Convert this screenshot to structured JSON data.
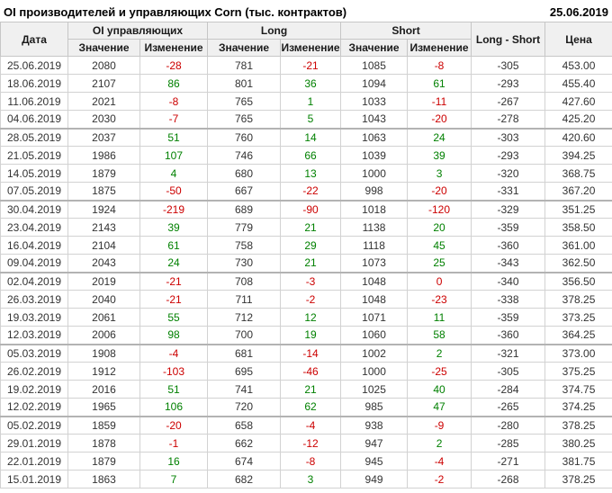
{
  "header": {
    "title": "OI производителей и управляющих Corn (тыс. контрактов)",
    "date": "25.06.2019"
  },
  "table": {
    "columns": {
      "date": "Дата",
      "oi_group": "OI управляющих",
      "long_group": "Long",
      "short_group": "Short",
      "value": "Значение",
      "change": "Изменение",
      "long_short": "Long - Short",
      "price": "Цена"
    },
    "rows": [
      {
        "date": "25.06.2019",
        "oi": "2080",
        "oi_chg": "-28",
        "long": "781",
        "long_chg": "-21",
        "short": "1085",
        "short_chg": "-8",
        "long_short": "-305",
        "price": "453.00"
      },
      {
        "date": "18.06.2019",
        "oi": "2107",
        "oi_chg": "86",
        "long": "801",
        "long_chg": "36",
        "short": "1094",
        "short_chg": "61",
        "long_short": "-293",
        "price": "455.40"
      },
      {
        "date": "11.06.2019",
        "oi": "2021",
        "oi_chg": "-8",
        "long": "765",
        "long_chg": "1",
        "short": "1033",
        "short_chg": "-11",
        "long_short": "-267",
        "price": "427.60"
      },
      {
        "date": "04.06.2019",
        "oi": "2030",
        "oi_chg": "-7",
        "long": "765",
        "long_chg": "5",
        "short": "1043",
        "short_chg": "-20",
        "long_short": "-278",
        "price": "425.20"
      },
      {
        "date": "28.05.2019",
        "oi": "2037",
        "oi_chg": "51",
        "long": "760",
        "long_chg": "14",
        "short": "1063",
        "short_chg": "24",
        "long_short": "-303",
        "price": "420.60"
      },
      {
        "date": "21.05.2019",
        "oi": "1986",
        "oi_chg": "107",
        "long": "746",
        "long_chg": "66",
        "short": "1039",
        "short_chg": "39",
        "long_short": "-293",
        "price": "394.25"
      },
      {
        "date": "14.05.2019",
        "oi": "1879",
        "oi_chg": "4",
        "long": "680",
        "long_chg": "13",
        "short": "1000",
        "short_chg": "3",
        "long_short": "-320",
        "price": "368.75"
      },
      {
        "date": "07.05.2019",
        "oi": "1875",
        "oi_chg": "-50",
        "long": "667",
        "long_chg": "-22",
        "short": "998",
        "short_chg": "-20",
        "long_short": "-331",
        "price": "367.20"
      },
      {
        "date": "30.04.2019",
        "oi": "1924",
        "oi_chg": "-219",
        "long": "689",
        "long_chg": "-90",
        "short": "1018",
        "short_chg": "-120",
        "long_short": "-329",
        "price": "351.25"
      },
      {
        "date": "23.04.2019",
        "oi": "2143",
        "oi_chg": "39",
        "long": "779",
        "long_chg": "21",
        "short": "1138",
        "short_chg": "20",
        "long_short": "-359",
        "price": "358.50"
      },
      {
        "date": "16.04.2019",
        "oi": "2104",
        "oi_chg": "61",
        "long": "758",
        "long_chg": "29",
        "short": "1118",
        "short_chg": "45",
        "long_short": "-360",
        "price": "361.00"
      },
      {
        "date": "09.04.2019",
        "oi": "2043",
        "oi_chg": "24",
        "long": "730",
        "long_chg": "21",
        "short": "1073",
        "short_chg": "25",
        "long_short": "-343",
        "price": "362.50"
      },
      {
        "date": "02.04.2019",
        "oi": "2019",
        "oi_chg": "-21",
        "long": "708",
        "long_chg": "-3",
        "short": "1048",
        "short_chg": "0",
        "long_short": "-340",
        "price": "356.50"
      },
      {
        "date": "26.03.2019",
        "oi": "2040",
        "oi_chg": "-21",
        "long": "711",
        "long_chg": "-2",
        "short": "1048",
        "short_chg": "-23",
        "long_short": "-338",
        "price": "378.25"
      },
      {
        "date": "19.03.2019",
        "oi": "2061",
        "oi_chg": "55",
        "long": "712",
        "long_chg": "12",
        "short": "1071",
        "short_chg": "11",
        "long_short": "-359",
        "price": "373.25"
      },
      {
        "date": "12.03.2019",
        "oi": "2006",
        "oi_chg": "98",
        "long": "700",
        "long_chg": "19",
        "short": "1060",
        "short_chg": "58",
        "long_short": "-360",
        "price": "364.25"
      },
      {
        "date": "05.03.2019",
        "oi": "1908",
        "oi_chg": "-4",
        "long": "681",
        "long_chg": "-14",
        "short": "1002",
        "short_chg": "2",
        "long_short": "-321",
        "price": "373.00"
      },
      {
        "date": "26.02.2019",
        "oi": "1912",
        "oi_chg": "-103",
        "long": "695",
        "long_chg": "-46",
        "short": "1000",
        "short_chg": "-25",
        "long_short": "-305",
        "price": "375.25"
      },
      {
        "date": "19.02.2019",
        "oi": "2016",
        "oi_chg": "51",
        "long": "741",
        "long_chg": "21",
        "short": "1025",
        "short_chg": "40",
        "long_short": "-284",
        "price": "374.75"
      },
      {
        "date": "12.02.2019",
        "oi": "1965",
        "oi_chg": "106",
        "long": "720",
        "long_chg": "62",
        "short": "985",
        "short_chg": "47",
        "long_short": "-265",
        "price": "374.25"
      },
      {
        "date": "05.02.2019",
        "oi": "1859",
        "oi_chg": "-20",
        "long": "658",
        "long_chg": "-4",
        "short": "938",
        "short_chg": "-9",
        "long_short": "-280",
        "price": "378.25"
      },
      {
        "date": "29.01.2019",
        "oi": "1878",
        "oi_chg": "-1",
        "long": "662",
        "long_chg": "-12",
        "short": "947",
        "short_chg": "2",
        "long_short": "-285",
        "price": "380.25"
      },
      {
        "date": "22.01.2019",
        "oi": "1879",
        "oi_chg": "16",
        "long": "674",
        "long_chg": "-8",
        "short": "945",
        "short_chg": "-4",
        "long_short": "-271",
        "price": "381.75"
      },
      {
        "date": "15.01.2019",
        "oi": "1863",
        "oi_chg": "7",
        "long": "682",
        "long_chg": "3",
        "short": "949",
        "short_chg": "-2",
        "long_short": "-268",
        "price": "378.25"
      }
    ]
  },
  "colors": {
    "positive": "#008000",
    "negative": "#cc0000"
  }
}
